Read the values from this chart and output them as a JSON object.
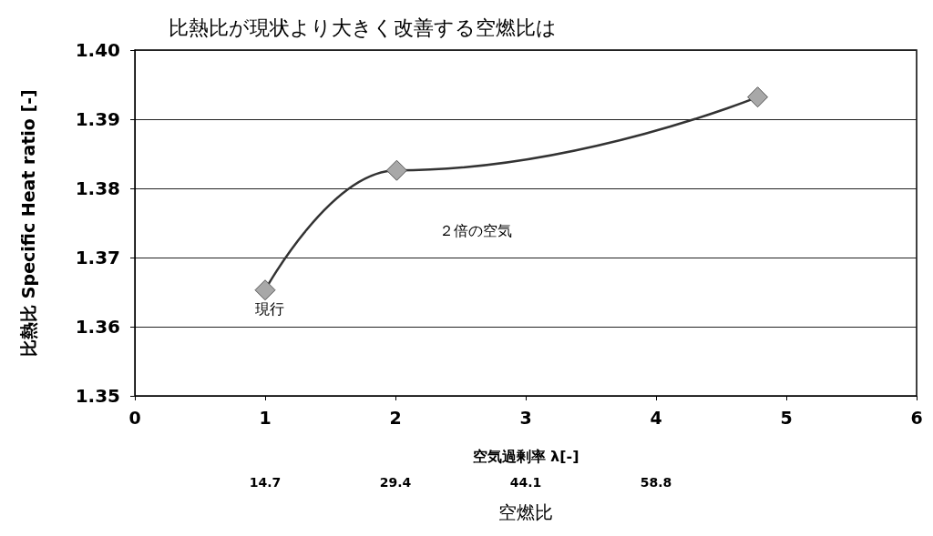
{
  "chart_data": {
    "type": "line",
    "title": "比熱比が現状より大きく改善する空燃比は",
    "xlabel": "空気過剰率 λ[-]",
    "ylabel": "比熱比 Specific Heat ratio [-]",
    "x2label": "空燃比",
    "x": [
      1,
      2.01,
      4.78
    ],
    "series": [
      {
        "color": "#333333",
        "values": [
          1.3653,
          1.3826,
          1.3932
        ]
      }
    ],
    "xlim": [
      0,
      6
    ],
    "xticks": [
      0,
      1,
      2,
      3,
      4,
      5,
      6
    ],
    "x2lim": [
      0,
      88.2
    ],
    "x2ticks": [
      14.7,
      29.4,
      44.1,
      58.8
    ],
    "ylim": [
      1.35,
      1.4
    ],
    "yticks": [
      1.35,
      1.36,
      1.37,
      1.38,
      1.39,
      {
        "value": 1.4,
        "label": "1.40"
      }
    ],
    "annotations": [
      "現行",
      "２倍の空気"
    ],
    "grid": "y",
    "marker": "diamond",
    "line_style": "solid"
  }
}
